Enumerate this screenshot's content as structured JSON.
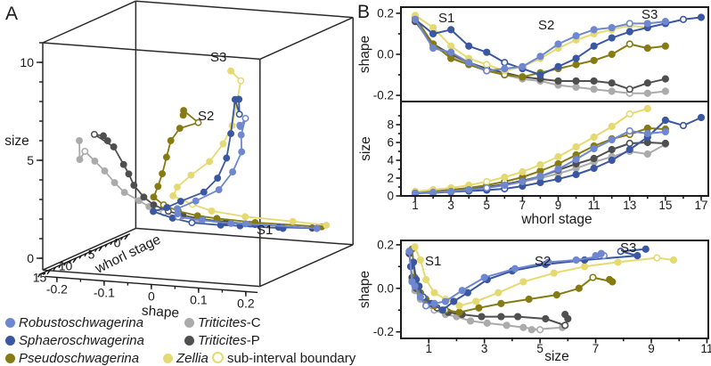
{
  "panel_a": {
    "label": "A",
    "xlabel": "shape",
    "ylabel": "size",
    "depth_label": "whorl stage",
    "stage_labels": [
      "S1",
      "S2",
      "S3"
    ],
    "size_ticks": {
      "major": [
        {
          "v": 0,
          "t": "0"
        },
        {
          "v": 5,
          "t": "5"
        },
        {
          "v": 10,
          "t": "10"
        }
      ],
      "minor_step": 1,
      "max": 11
    },
    "whorl_ticks": {
      "major": [
        {
          "v": 15,
          "t": "15"
        },
        {
          "v": 10,
          "t": "10"
        },
        {
          "v": 5,
          "t": "5"
        },
        {
          "v": 0,
          "t": "0"
        }
      ],
      "minor_step": 1,
      "max": 17
    },
    "shape_ticks": {
      "major": [
        {
          "v": -0.2,
          "t": "-0.2"
        },
        {
          "v": -0.1,
          "t": "-0.1"
        },
        {
          "v": 0,
          "t": "0"
        },
        {
          "v": 0.1,
          "t": "0.1"
        },
        {
          "v": 0.2,
          "t": "0.2"
        }
      ],
      "minor_step": 0.05
    }
  },
  "panel_b": {
    "label": "B",
    "ylabel_top": "shape",
    "ylabel_mid": "size",
    "ylabel_bottom": "shape",
    "xlabel_mid": "whorl stage",
    "xlabel_bottom": "size",
    "stage_labels_top": [
      "S1",
      "S2",
      "S3"
    ],
    "stage_labels_bottom": [
      "S1",
      "S2",
      "S3"
    ],
    "shape_ticks": {
      "major": [
        {
          "v": 0.2,
          "t": "0.2"
        },
        {
          "v": 0,
          "t": "0.0"
        },
        {
          "v": -0.2,
          "t": "-0.2"
        }
      ],
      "minor": [
        0.1,
        -0.1
      ]
    },
    "size_ticks": {
      "major": [
        {
          "v": 0,
          "t": "0"
        },
        {
          "v": 2,
          "t": "2"
        },
        {
          "v": 4,
          "t": "4"
        },
        {
          "v": 6,
          "t": "6"
        },
        {
          "v": 8,
          "t": "8"
        }
      ],
      "minor": [
        1,
        3,
        5,
        7,
        9
      ]
    },
    "stage_axis_ticks": {
      "major": [
        {
          "v": 1,
          "t": "1"
        },
        {
          "v": 3,
          "t": "3"
        },
        {
          "v": 5,
          "t": "5"
        },
        {
          "v": 7,
          "t": "7"
        },
        {
          "v": 9,
          "t": "9"
        },
        {
          "v": 11,
          "t": "11"
        },
        {
          "v": 13,
          "t": "13"
        },
        {
          "v": 15,
          "t": "15"
        },
        {
          "v": 17,
          "t": "17"
        }
      ],
      "minor": [
        2,
        4,
        6,
        8,
        10,
        12,
        14,
        16
      ]
    },
    "size_axis_ticks": {
      "major": [
        {
          "v": 1,
          "t": "1"
        },
        {
          "v": 3,
          "t": "3"
        },
        {
          "v": 5,
          "t": "5"
        },
        {
          "v": 7,
          "t": "7"
        },
        {
          "v": 9,
          "t": "9"
        },
        {
          "v": 11,
          "t": "11"
        }
      ],
      "minor": [
        2,
        4,
        6,
        8,
        10
      ]
    }
  },
  "legend": {
    "rows": [
      [
        {
          "name": "Robustoschwagerina",
          "suffix": "",
          "color": "#6e87d0",
          "marker": "filled",
          "italic": true
        },
        {
          "name": "Triticites",
          "suffix": "-C",
          "color": "#ababab",
          "marker": "filled",
          "italic": true
        }
      ],
      [
        {
          "name": "Sphaeroschwagerina",
          "suffix": "",
          "color": "#3a57a2",
          "marker": "filled",
          "italic": true
        },
        {
          "name": "Triticites",
          "suffix": "-P",
          "color": "#4f4f4f",
          "marker": "filled",
          "italic": true
        }
      ],
      [
        {
          "name": "Pseudoschwagerina",
          "suffix": "",
          "color": "#867b13",
          "marker": "filled",
          "italic": true
        },
        {
          "name": "Zellia",
          "suffix": "",
          "color": "#e5da71",
          "marker": "filled",
          "italic": true
        },
        {
          "name": "sub-interval boundary",
          "suffix": "",
          "color": "#e5da71",
          "marker": "open",
          "italic": false
        }
      ]
    ]
  },
  "chart_data": {
    "type": "line",
    "description": "Ontogenetic trajectories of fusulinid shell shape and size per whorl stage; panel A is a 3D view (shape x whorl stage x size), panel B shows shape vs whorl stage, size vs whorl stage, and shape vs size. Open circles mark sub-interval boundaries (S1/S2/S3).",
    "axes": {
      "shape_lim": [
        -0.2,
        0.2
      ],
      "whorl_stage_lim": [
        0,
        17
      ],
      "size_lim": [
        0,
        10.6
      ]
    },
    "series": [
      {
        "name": "Triticites-C",
        "color": "#ababab",
        "start_stage": 1,
        "shape": [
          0.16,
          0.04,
          -0.01,
          -0.05,
          -0.08,
          -0.1,
          -0.12,
          -0.13,
          -0.15,
          -0.16,
          -0.17,
          -0.18,
          -0.19,
          -0.19,
          -0.18
        ],
        "size": [
          0.3,
          0.4,
          0.5,
          0.7,
          0.9,
          1.2,
          1.6,
          2.0,
          2.5,
          3.1,
          3.8,
          4.4,
          5.0,
          4.7,
          5.8
        ],
        "subinterval_boundaries": [
          6,
          13
        ]
      },
      {
        "name": "Triticites-P",
        "color": "#4f4f4f",
        "start_stage": 1,
        "shape": [
          0.16,
          0.05,
          0.0,
          -0.04,
          -0.07,
          -0.09,
          -0.11,
          -0.12,
          -0.13,
          -0.13,
          -0.13,
          -0.14,
          -0.17,
          -0.14,
          -0.12
        ],
        "size": [
          0.3,
          0.4,
          0.55,
          0.75,
          1.0,
          1.3,
          1.7,
          2.2,
          2.9,
          3.6,
          4.2,
          5.2,
          5.9,
          6.0,
          5.9
        ],
        "subinterval_boundaries": [
          6,
          13
        ]
      },
      {
        "name": "Pseudoschwagerina",
        "color": "#867b13",
        "start_stage": 1,
        "shape": [
          0.18,
          0.05,
          -0.02,
          -0.05,
          -0.08,
          -0.1,
          -0.11,
          -0.09,
          -0.07,
          -0.05,
          -0.03,
          0.0,
          0.05,
          0.03,
          0.04
        ],
        "size": [
          0.4,
          0.5,
          0.7,
          0.9,
          1.2,
          1.6,
          2.1,
          2.8,
          3.6,
          4.6,
          5.6,
          6.4,
          6.9,
          7.6,
          7.5
        ],
        "subinterval_boundaries": [
          6,
          13
        ]
      },
      {
        "name": "Zellia",
        "color": "#e5da71",
        "start_stage": 1,
        "shape": [
          0.19,
          0.13,
          0.04,
          -0.02,
          -0.05,
          -0.08,
          -0.06,
          -0.02,
          0.03,
          0.07,
          0.1,
          0.12,
          0.14,
          0.13
        ],
        "size": [
          0.5,
          0.7,
          0.9,
          1.2,
          1.6,
          2.1,
          2.7,
          3.5,
          4.4,
          5.5,
          6.6,
          7.8,
          9.2,
          9.8
        ],
        "subinterval_boundaries": [
          5,
          13
        ]
      },
      {
        "name": "Sphaeroschwagerina",
        "color": "#3a57a2",
        "start_stage": 1,
        "shape": [
          0.17,
          0.1,
          0.12,
          0.04,
          0.01,
          -0.04,
          -0.07,
          -0.1,
          -0.06,
          -0.02,
          0.04,
          0.08,
          0.11,
          0.13,
          0.15,
          0.17,
          0.18
        ],
        "size": [
          0.3,
          0.35,
          0.45,
          0.55,
          0.65,
          0.8,
          1.1,
          1.5,
          1.9,
          2.4,
          3.1,
          4.0,
          5.2,
          6.6,
          8.5,
          7.9,
          8.8
        ],
        "subinterval_boundaries": [
          6,
          16
        ]
      },
      {
        "name": "Robustoschwagerina",
        "color": "#6e87d0",
        "start_stage": 1,
        "shape": [
          0.17,
          0.03,
          0.01,
          -0.04,
          -0.08,
          -0.07,
          -0.06,
          -0.01,
          0.05,
          0.09,
          0.12,
          0.13,
          0.15,
          0.15,
          0.16
        ],
        "size": [
          0.3,
          0.4,
          0.5,
          0.7,
          0.9,
          1.2,
          1.6,
          2.2,
          3.0,
          4.1,
          5.3,
          6.3,
          7.3,
          7.0,
          7.2
        ],
        "subinterval_boundaries": [
          5,
          13
        ]
      }
    ],
    "panels": [
      {
        "id": "A",
        "type": "line3d",
        "x": "shape",
        "depth": "whorl stage",
        "y": "size"
      },
      {
        "id": "B-top",
        "type": "line",
        "x": "whorl stage",
        "y": "shape",
        "xlim": [
          0.2,
          17.4
        ],
        "ylim": [
          -0.23,
          0.23
        ]
      },
      {
        "id": "B-middle",
        "type": "line",
        "x": "whorl stage",
        "y": "size",
        "xlim": [
          0.2,
          17.4
        ],
        "ylim": [
          0,
          10.6
        ]
      },
      {
        "id": "B-bottom",
        "type": "line",
        "x": "size",
        "y": "shape",
        "xlim": [
          0,
          11.05
        ],
        "ylim": [
          -0.23,
          0.22
        ]
      }
    ]
  }
}
